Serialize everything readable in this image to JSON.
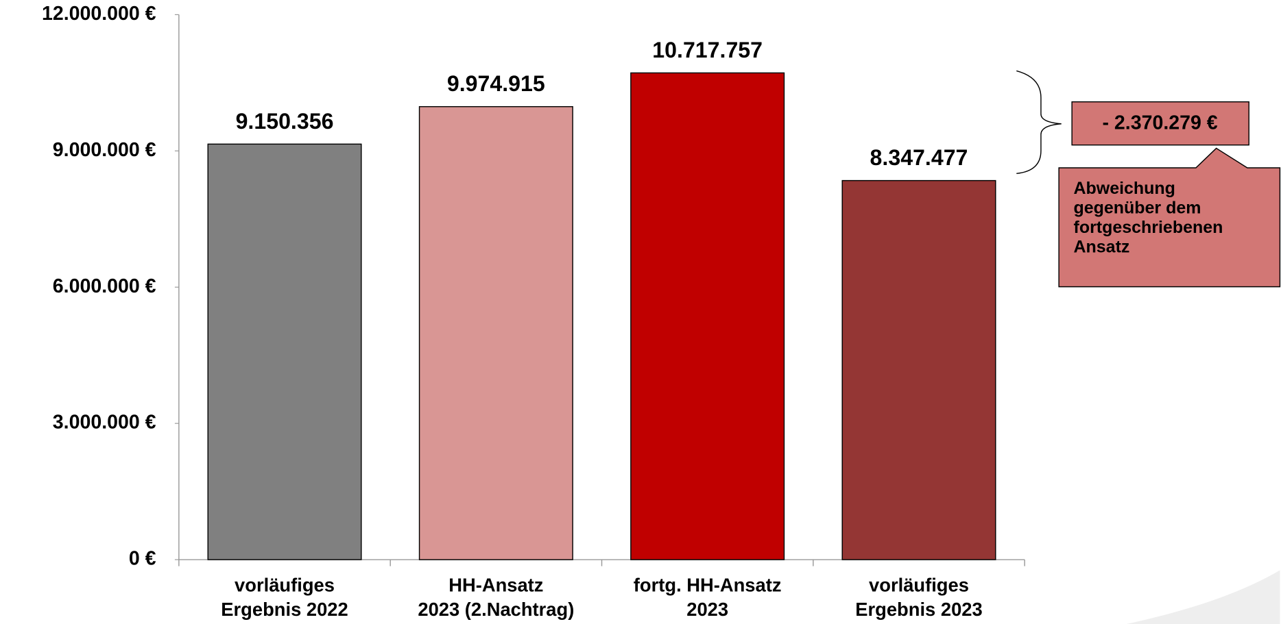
{
  "chart_data": {
    "type": "bar",
    "categories": [
      "vorläufiges\nErgebnis 2022",
      "HH-Ansatz\n2023 (2.Nachtrag)",
      "fortg. HH-Ansatz\n2023",
      "vorläufiges\nErgebnis 2023"
    ],
    "values": [
      9150356,
      9974915,
      10717757,
      8347477
    ],
    "value_labels": [
      "9.150.356",
      "9.974.915",
      "10.717.757",
      "8.347.477"
    ],
    "colors": [
      "#808080",
      "#d99694",
      "#c00000",
      "#943634"
    ],
    "ylim": [
      0,
      12000000
    ],
    "yticks": [
      {
        "value": 0,
        "label": "0 €"
      },
      {
        "value": 3000000,
        "label": "3.000.000 €"
      },
      {
        "value": 6000000,
        "label": "6.000.000 €"
      },
      {
        "value": 9000000,
        "label": "9.000.000 €"
      },
      {
        "value": 12000000,
        "label": "12.000.000 €"
      }
    ],
    "grid": false,
    "annotations": [
      {
        "text": "- 2.370.279 €"
      },
      {
        "text": "Abweichung\ngegenüber dem\nfortgeschriebenen\nAnsatz"
      }
    ]
  }
}
